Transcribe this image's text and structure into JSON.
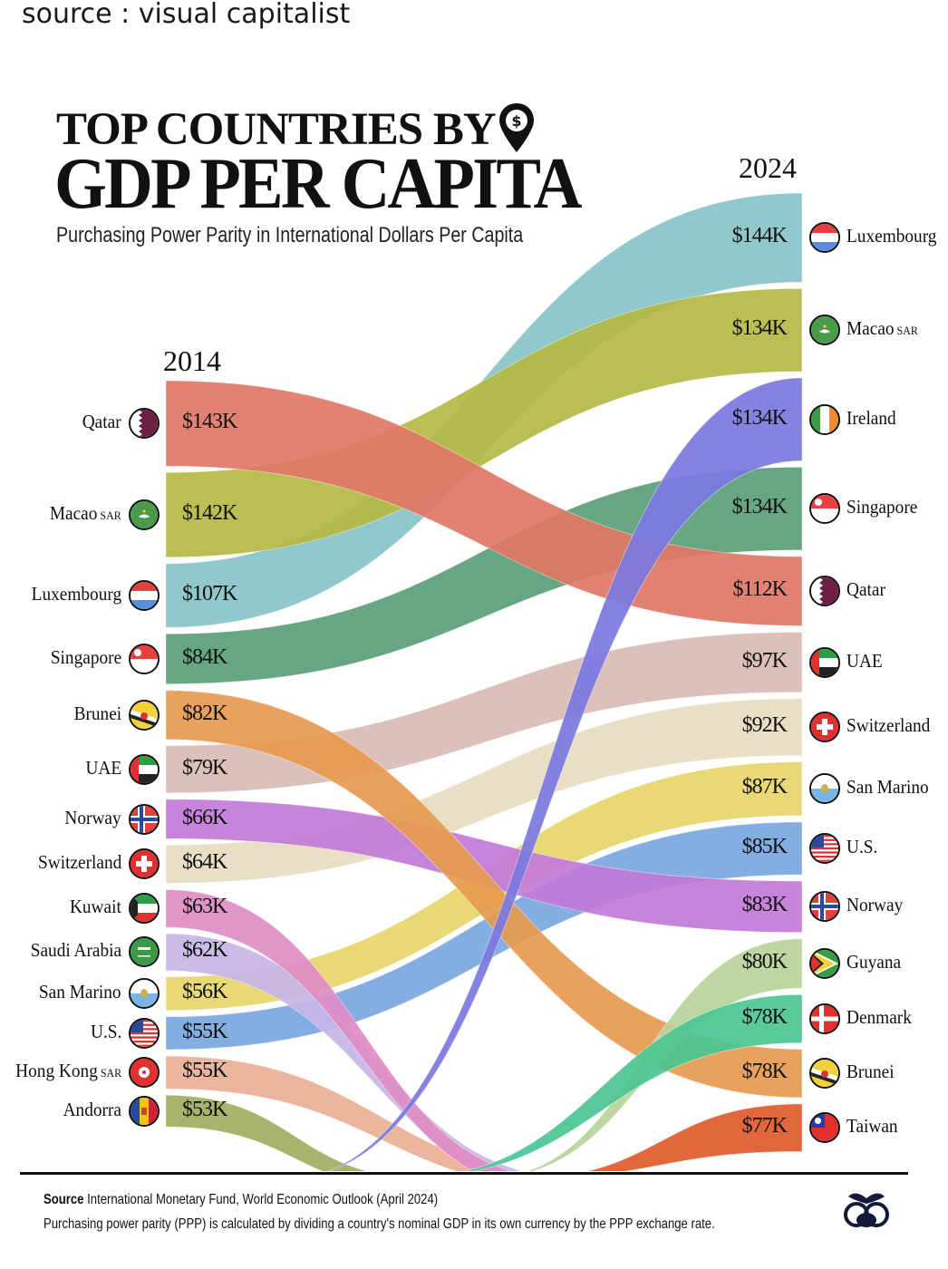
{
  "source_caption": "source : visual capitalist",
  "title_line1": "TOP COUNTRIES BY",
  "title_line2": "GDP PER CAPITA",
  "subtitle": "Purchasing Power Parity in International Dollars Per Capita",
  "icons": {
    "title_pin": "map-pin-dollar-icon",
    "logo": "visual-capitalist-logo-icon"
  },
  "footer": {
    "source_label": "Source",
    "source_text": "International Monetary Fund, World Economic Outlook (April 2024)",
    "note": "Purchasing power parity (PPP) is calculated by dividing a country's nominal GDP in its own currency by the PPP exchange rate."
  },
  "chart_data": {
    "type": "bump-sankey",
    "title": "Top Countries by GDP per Capita",
    "subtitle": "Purchasing Power Parity in International Dollars Per Capita",
    "left_year": "2014",
    "right_year": "2024",
    "units": "International $ (thousands)",
    "left": [
      {
        "country": "Qatar",
        "suffix": "",
        "value": 143,
        "label": "$143K",
        "color": "#e07766",
        "flag": "qatar"
      },
      {
        "country": "Macao",
        "suffix": "SAR",
        "value": 142,
        "label": "$142K",
        "color": "#b5b843",
        "flag": "macao"
      },
      {
        "country": "Luxembourg",
        "suffix": "",
        "value": 107,
        "label": "$107K",
        "color": "#88c3c7",
        "flag": "luxembourg"
      },
      {
        "country": "Singapore",
        "suffix": "",
        "value": 84,
        "label": "$84K",
        "color": "#5a9e77",
        "flag": "singapore"
      },
      {
        "country": "Brunei",
        "suffix": "",
        "value": 82,
        "label": "$82K",
        "color": "#e69a4f",
        "flag": "brunei"
      },
      {
        "country": "UAE",
        "suffix": "",
        "value": 79,
        "label": "$79K",
        "color": "#d9bbb4",
        "flag": "uae"
      },
      {
        "country": "Norway",
        "suffix": "",
        "value": 66,
        "label": "$66K",
        "color": "#c27ad8",
        "flag": "norway"
      },
      {
        "country": "Switzerland",
        "suffix": "",
        "value": 64,
        "label": "$64K",
        "color": "#e6dcc0",
        "flag": "switzerland"
      },
      {
        "country": "Kuwait",
        "suffix": "",
        "value": 63,
        "label": "$63K",
        "color": "#e08cc4",
        "flag": "kuwait"
      },
      {
        "country": "Saudi Arabia",
        "suffix": "",
        "value": 62,
        "label": "$62K",
        "color": "#c5b5e6",
        "flag": "saudi"
      },
      {
        "country": "San Marino",
        "suffix": "",
        "value": 56,
        "label": "$56K",
        "color": "#e6d56a",
        "flag": "sanmarino"
      },
      {
        "country": "U.S.",
        "suffix": "",
        "value": 55,
        "label": "$55K",
        "color": "#7aa6e0",
        "flag": "us"
      },
      {
        "country": "Hong Kong",
        "suffix": "SAR",
        "value": 55,
        "label": "$55K",
        "color": "#eab096",
        "flag": "hongkong"
      },
      {
        "country": "Andorra",
        "suffix": "",
        "value": 53,
        "label": "$53K",
        "color": "#a3ad5e",
        "flag": "andorra"
      }
    ],
    "right": [
      {
        "country": "Luxembourg",
        "suffix": "",
        "value": 144,
        "label": "$144K",
        "color": "#88c3c7",
        "flag": "luxembourg"
      },
      {
        "country": "Macao",
        "suffix": "SAR",
        "value": 134,
        "label": "$134K",
        "color": "#b5b843",
        "flag": "macao"
      },
      {
        "country": "Ireland",
        "suffix": "",
        "value": 134,
        "label": "$134K",
        "color": "#7b78e0",
        "flag": "ireland"
      },
      {
        "country": "Singapore",
        "suffix": "",
        "value": 134,
        "label": "$134K",
        "color": "#5a9e77",
        "flag": "singapore"
      },
      {
        "country": "Qatar",
        "suffix": "",
        "value": 112,
        "label": "$112K",
        "color": "#e07766",
        "flag": "qatar"
      },
      {
        "country": "UAE",
        "suffix": "",
        "value": 97,
        "label": "$97K",
        "color": "#d9bbb4",
        "flag": "uae"
      },
      {
        "country": "Switzerland",
        "suffix": "",
        "value": 92,
        "label": "$92K",
        "color": "#e6dcc0",
        "flag": "switzerland"
      },
      {
        "country": "San Marino",
        "suffix": "",
        "value": 87,
        "label": "$87K",
        "color": "#e6d56a",
        "flag": "sanmarino"
      },
      {
        "country": "U.S.",
        "suffix": "",
        "value": 85,
        "label": "$85K",
        "color": "#7aa6e0",
        "flag": "us"
      },
      {
        "country": "Norway",
        "suffix": "",
        "value": 83,
        "label": "$83K",
        "color": "#c27ad8",
        "flag": "norway"
      },
      {
        "country": "Guyana",
        "suffix": "",
        "value": 80,
        "label": "$80K",
        "color": "#b8d39a",
        "flag": "guyana"
      },
      {
        "country": "Denmark",
        "suffix": "",
        "value": 78,
        "label": "$78K",
        "color": "#4cc594",
        "flag": "denmark"
      },
      {
        "country": "Brunei",
        "suffix": "",
        "value": 78,
        "label": "$78K",
        "color": "#e69a4f",
        "flag": "brunei"
      },
      {
        "country": "Taiwan",
        "suffix": "",
        "value": 77,
        "label": "$77K",
        "color": "#e05a2c",
        "flag": "taiwan"
      }
    ],
    "offchart_flows_2014": [
      {
        "country": "Kuwait",
        "direction": "exits-bottom"
      },
      {
        "country": "Saudi Arabia",
        "direction": "exits-bottom"
      },
      {
        "country": "Hong Kong",
        "direction": "exits-bottom"
      },
      {
        "country": "Andorra",
        "direction": "exits-bottom"
      }
    ],
    "offchart_flows_2024": [
      {
        "country": "Ireland",
        "direction": "enters-bottom"
      },
      {
        "country": "Guyana",
        "direction": "enters-bottom"
      },
      {
        "country": "Denmark",
        "direction": "enters-bottom"
      },
      {
        "country": "Taiwan",
        "direction": "enters-bottom"
      }
    ]
  }
}
